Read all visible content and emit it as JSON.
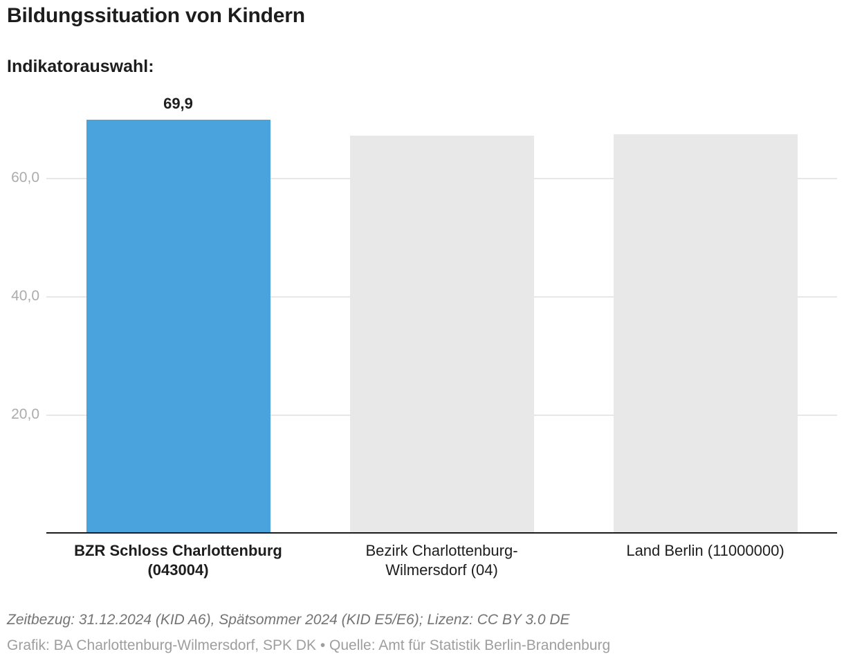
{
  "header": {
    "title": "Bildungssituation von Kindern",
    "subtitle": "Indikatorauswahl:"
  },
  "chart_data": {
    "type": "bar",
    "title": "Bildungssituation von Kindern",
    "subtitle": "Indikatorauswahl:",
    "categories": [
      "BZR Schloss Charlottenburg\n(043004)",
      "Bezirk Charlottenburg-\nWilmersdorf (04)",
      "Land Berlin (11000000)"
    ],
    "values": [
      69.9,
      67.3,
      67.5
    ],
    "value_labels": [
      "69,9",
      "",
      ""
    ],
    "bar_colors": [
      "#4aa3dc",
      "#e8e8e8",
      "#e8e8e8"
    ],
    "highlighted_category_index": 0,
    "y_ticks": [
      {
        "value": 20,
        "label": "20,0"
      },
      {
        "value": 40,
        "label": "40,0"
      },
      {
        "value": 60,
        "label": "60,0"
      }
    ],
    "ylim": [
      0,
      76.7
    ],
    "grid": true,
    "legend_position": "none",
    "xlabel": "",
    "ylabel": ""
  },
  "footer": {
    "notes": "Zeitbezug: 31.12.2024 (KID A6), Spätsommer 2024 (KID E5/E6); Lizenz: CC BY 3.0 DE",
    "byline": "Grafik: BA Charlottenburg-Wilmersdorf, SPK DK • Quelle: Amt für Statistik Berlin-Brandenburg"
  },
  "colors": {
    "highlight_bar": "#4aa3dc",
    "muted_bar": "#e8e8e8",
    "gridline": "#e7e7e7",
    "axis_line": "#1a1a1a",
    "tick_label": "#acacac",
    "text": "#1d1d1d",
    "notes_text": "#747474",
    "byline_text": "#9e9e9e"
  }
}
